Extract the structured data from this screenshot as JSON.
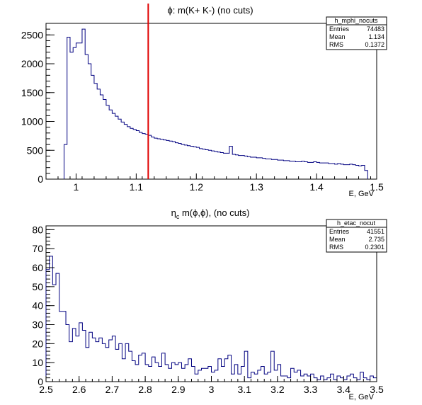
{
  "chart_data": [
    {
      "type": "histogram",
      "title": "ϕ: m(K+ K-) (no cuts)",
      "xlabel": "E, GeV",
      "xlim": [
        0.95,
        1.5
      ],
      "ylim": [
        0,
        2700
      ],
      "xticks": [
        "1",
        "1.1",
        "1.2",
        "1.3",
        "1.4",
        "1.5"
      ],
      "yticks": [
        "0",
        "500",
        "1000",
        "1500",
        "2000",
        "2500"
      ],
      "line_color": "#000080",
      "marker_line": {
        "x": 1.12,
        "color": "#e00000"
      },
      "bin_width": 0.005,
      "x_start": 0.98,
      "values": [
        600,
        2460,
        2200,
        2280,
        2360,
        2360,
        2600,
        2160,
        2000,
        1800,
        1660,
        1560,
        1460,
        1380,
        1280,
        1200,
        1140,
        1090,
        1040,
        990,
        950,
        910,
        880,
        860,
        840,
        810,
        790,
        780,
        760,
        730,
        710,
        700,
        690,
        680,
        670,
        660,
        650,
        630,
        620,
        600,
        590,
        580,
        570,
        560,
        550,
        530,
        520,
        510,
        500,
        490,
        480,
        470,
        460,
        450,
        450,
        570,
        430,
        420,
        410,
        410,
        400,
        390,
        380,
        380,
        370,
        370,
        360,
        350,
        350,
        340,
        340,
        330,
        330,
        320,
        320,
        310,
        310,
        300,
        300,
        310,
        300,
        290,
        290,
        300,
        290,
        280,
        280,
        280,
        270,
        270,
        260,
        270,
        260,
        250,
        250,
        260,
        250,
        240,
        230,
        240,
        150
      ],
      "stats": {
        "name": "h_mphi_nocuts",
        "rows": [
          [
            "Entries",
            "74483"
          ],
          [
            "Mean",
            "1.134"
          ],
          [
            "RMS",
            "0.1372"
          ]
        ]
      }
    },
    {
      "type": "histogram",
      "title": "η",
      "title_sub": "c",
      "title_rest": " m(ϕ,ϕ), (no cuts)",
      "xlabel": "E, GeV",
      "xlim": [
        2.5,
        3.5
      ],
      "ylim": [
        0,
        82
      ],
      "xticks": [
        "2.5",
        "2.6",
        "2.7",
        "2.8",
        "2.9",
        "3",
        "3.1",
        "3.2",
        "3.3",
        "3.4",
        "3.5"
      ],
      "yticks": [
        "0",
        "10",
        "20",
        "30",
        "40",
        "50",
        "60",
        "70",
        "80"
      ],
      "line_color": "#000080",
      "bin_width": 0.01,
      "x_start": 2.5,
      "values": [
        59,
        66,
        51,
        57,
        37,
        37,
        30,
        21,
        28,
        24,
        31,
        27,
        18,
        26,
        23,
        21,
        23,
        20,
        18,
        22,
        24,
        17,
        20,
        12,
        20,
        16,
        11,
        9,
        14,
        15,
        9,
        8,
        13,
        10,
        8,
        15,
        9,
        7,
        10,
        9,
        10,
        7,
        9,
        12,
        8,
        4,
        6,
        7,
        7,
        8,
        5,
        6,
        12,
        8,
        12,
        14,
        4,
        9,
        4,
        8,
        16,
        2,
        5,
        4,
        6,
        8,
        4,
        5,
        16,
        6,
        9,
        3,
        3,
        2,
        7,
        5,
        6,
        3,
        4,
        3,
        4,
        2,
        1,
        3,
        1,
        2,
        4,
        1,
        3,
        2,
        1,
        3,
        4,
        2,
        1,
        5,
        2,
        1,
        3,
        2
      ],
      "stats": {
        "name": "h_etac_nocut",
        "rows": [
          [
            "Entries",
            "41551"
          ],
          [
            "Mean",
            "2.735"
          ],
          [
            "RMS",
            "0.2301"
          ]
        ]
      }
    }
  ]
}
